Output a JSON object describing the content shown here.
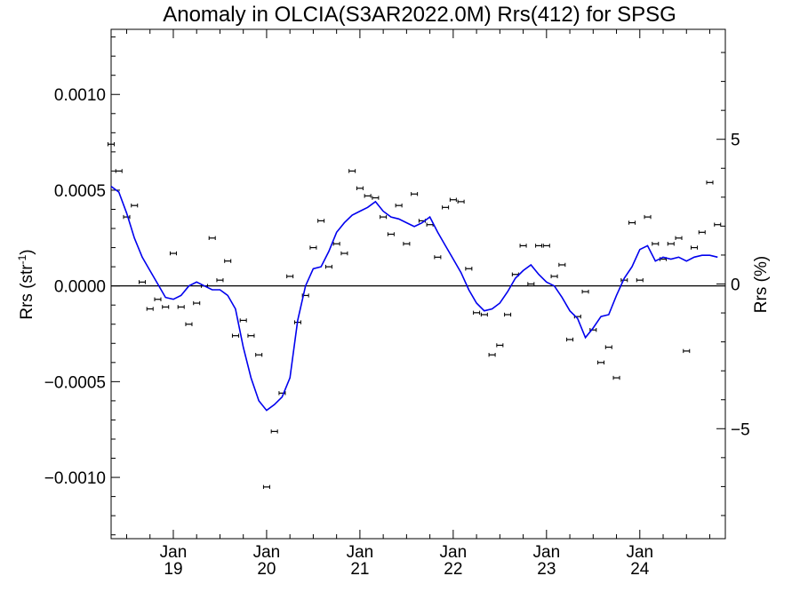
{
  "chart_data": {
    "type": "line",
    "title": "Anomaly in OLCIA(S3AR2022.0M) Rrs(412) for SPSG",
    "ylabel_left": "Rrs (str",
    "ylabel_left_superscript": "-1",
    "ylabel_right": "Rrs (%)",
    "x_range": [
      "2018-05-01",
      "2024-12-01"
    ],
    "ylim_left": [
      -0.00132,
      0.00134
    ],
    "ylim_right": [
      -8.8,
      8.8
    ],
    "grid": false,
    "zero_line": true,
    "left_ticks": [
      {
        "value": 0.001,
        "label": "0.0010"
      },
      {
        "value": 0.0005,
        "label": "0.0005"
      },
      {
        "value": 0.0,
        "label": "0.0000"
      },
      {
        "value": -0.0005,
        "label": "−0.0005"
      },
      {
        "value": -0.001,
        "label": "−0.0010"
      }
    ],
    "right_ticks": [
      {
        "value": 5,
        "label": "5"
      },
      {
        "value": 0,
        "label": "0"
      },
      {
        "value": -5,
        "label": "−5"
      }
    ],
    "x_ticks": [
      {
        "date": "2019-01-01",
        "month": "Jan",
        "year": "19"
      },
      {
        "date": "2020-01-01",
        "month": "Jan",
        "year": "20"
      },
      {
        "date": "2021-01-01",
        "month": "Jan",
        "year": "21"
      },
      {
        "date": "2022-01-01",
        "month": "Jan",
        "year": "22"
      },
      {
        "date": "2023-01-01",
        "month": "Jan",
        "year": "23"
      },
      {
        "date": "2024-01-01",
        "month": "Jan",
        "year": "24"
      }
    ],
    "series": [
      {
        "kind": "points_with_errorbars",
        "color": "#000000",
        "x": [
          "2018-05",
          "2018-06",
          "2018-07",
          "2018-08",
          "2018-09",
          "2018-10",
          "2018-11",
          "2018-12",
          "2019-01",
          "2019-02",
          "2019-03",
          "2019-04",
          "2019-05",
          "2019-06",
          "2019-07",
          "2019-08",
          "2019-09",
          "2019-10",
          "2019-11",
          "2019-12",
          "2020-01",
          "2020-02",
          "2020-03",
          "2020-04",
          "2020-05",
          "2020-06",
          "2020-07",
          "2020-08",
          "2020-09",
          "2020-10",
          "2020-11",
          "2020-12",
          "2021-01",
          "2021-02",
          "2021-03",
          "2021-04",
          "2021-05",
          "2021-06",
          "2021-07",
          "2021-08",
          "2021-09",
          "2021-10",
          "2021-11",
          "2021-12",
          "2022-01",
          "2022-02",
          "2022-03",
          "2022-04",
          "2022-05",
          "2022-06",
          "2022-07",
          "2022-08",
          "2022-09",
          "2022-10",
          "2022-11",
          "2022-12",
          "2023-01",
          "2023-02",
          "2023-03",
          "2023-04",
          "2023-05",
          "2023-06",
          "2023-07",
          "2023-08",
          "2023-09",
          "2023-10",
          "2023-11",
          "2023-12",
          "2024-01",
          "2024-02",
          "2024-03",
          "2024-04",
          "2024-05",
          "2024-06",
          "2024-07",
          "2024-08",
          "2024-09",
          "2024-10",
          "2024-11"
        ],
        "y": [
          0.00074,
          0.0006,
          0.00036,
          0.00042,
          2e-05,
          -0.00012,
          -7e-05,
          -0.00011,
          0.00017,
          -0.00011,
          -0.0002,
          -9e-05,
          0.0,
          0.00025,
          3e-05,
          0.00013,
          -0.00026,
          -0.00018,
          -0.00026,
          -0.00036,
          -0.00105,
          -0.00076,
          -0.00056,
          5e-05,
          -0.00019,
          -5e-05,
          0.0002,
          0.00034,
          0.0001,
          0.00022,
          0.00017,
          0.0006,
          0.00051,
          0.00047,
          0.00046,
          0.00036,
          0.00027,
          0.00042,
          0.00022,
          0.00048,
          0.00034,
          0.00032,
          0.00015,
          0.00041,
          0.00045,
          0.00044,
          9e-05,
          -0.00014,
          -0.00015,
          -0.00036,
          -0.00031,
          -0.00015,
          6e-05,
          0.00021,
          1e-05,
          0.00021,
          0.00021,
          5e-05,
          0.00011,
          -0.00028,
          -0.00016,
          -3e-05,
          -0.00023,
          -0.0004,
          -0.00032,
          -0.00048,
          3e-05,
          0.00033,
          3e-05,
          0.00036,
          0.00022,
          0.00014,
          0.00022,
          0.00025,
          -0.00034,
          0.0002,
          0.00028,
          0.00054,
          0.00032
        ]
      },
      {
        "kind": "line",
        "color": "#0000ee",
        "x": [
          "2018-05",
          "2018-06",
          "2018-07",
          "2018-08",
          "2018-09",
          "2018-10",
          "2018-11",
          "2018-12",
          "2019-01",
          "2019-02",
          "2019-03",
          "2019-04",
          "2019-05",
          "2019-06",
          "2019-07",
          "2019-08",
          "2019-09",
          "2019-10",
          "2019-11",
          "2019-12",
          "2020-01",
          "2020-02",
          "2020-03",
          "2020-04",
          "2020-05",
          "2020-06",
          "2020-07",
          "2020-08",
          "2020-09",
          "2020-10",
          "2020-11",
          "2020-12",
          "2021-01",
          "2021-02",
          "2021-03",
          "2021-04",
          "2021-05",
          "2021-06",
          "2021-07",
          "2021-08",
          "2021-09",
          "2021-10",
          "2021-11",
          "2021-12",
          "2022-01",
          "2022-02",
          "2022-03",
          "2022-04",
          "2022-05",
          "2022-06",
          "2022-07",
          "2022-08",
          "2022-09",
          "2022-10",
          "2022-11",
          "2022-12",
          "2023-01",
          "2023-02",
          "2023-03",
          "2023-04",
          "2023-05",
          "2023-06",
          "2023-07",
          "2023-08",
          "2023-09",
          "2023-10",
          "2023-11",
          "2023-12",
          "2024-01",
          "2024-02",
          "2024-03",
          "2024-04",
          "2024-05",
          "2024-06",
          "2024-07",
          "2024-08",
          "2024-09",
          "2024-10",
          "2024-11"
        ],
        "y": [
          0.00052,
          0.00049,
          0.00038,
          0.00025,
          0.00015,
          8e-05,
          1e-05,
          -6e-05,
          -7e-05,
          -5e-05,
          0.0,
          2e-05,
          0.0,
          -2e-05,
          -2e-05,
          -5e-05,
          -0.00012,
          -0.00032,
          -0.00048,
          -0.0006,
          -0.00065,
          -0.00062,
          -0.00058,
          -0.00048,
          -0.00018,
          0.0,
          9e-05,
          0.0001,
          0.00018,
          0.00028,
          0.00033,
          0.00037,
          0.00039,
          0.00041,
          0.00044,
          0.00039,
          0.00036,
          0.00035,
          0.00033,
          0.00031,
          0.00033,
          0.00036,
          0.00028,
          0.00021,
          0.00014,
          7e-05,
          -2e-05,
          -9e-05,
          -0.00013,
          -0.00012,
          -9e-05,
          -3e-05,
          4e-05,
          8e-05,
          0.00011,
          6e-05,
          2e-05,
          0.0,
          -6e-05,
          -0.00013,
          -0.00017,
          -0.00027,
          -0.00022,
          -0.00016,
          -0.00015,
          -5e-05,
          4e-05,
          0.0001,
          0.00019,
          0.00021,
          0.00013,
          0.00015,
          0.00014,
          0.00015,
          0.00013,
          0.00015,
          0.00016,
          0.00016,
          0.00015
        ]
      }
    ]
  }
}
